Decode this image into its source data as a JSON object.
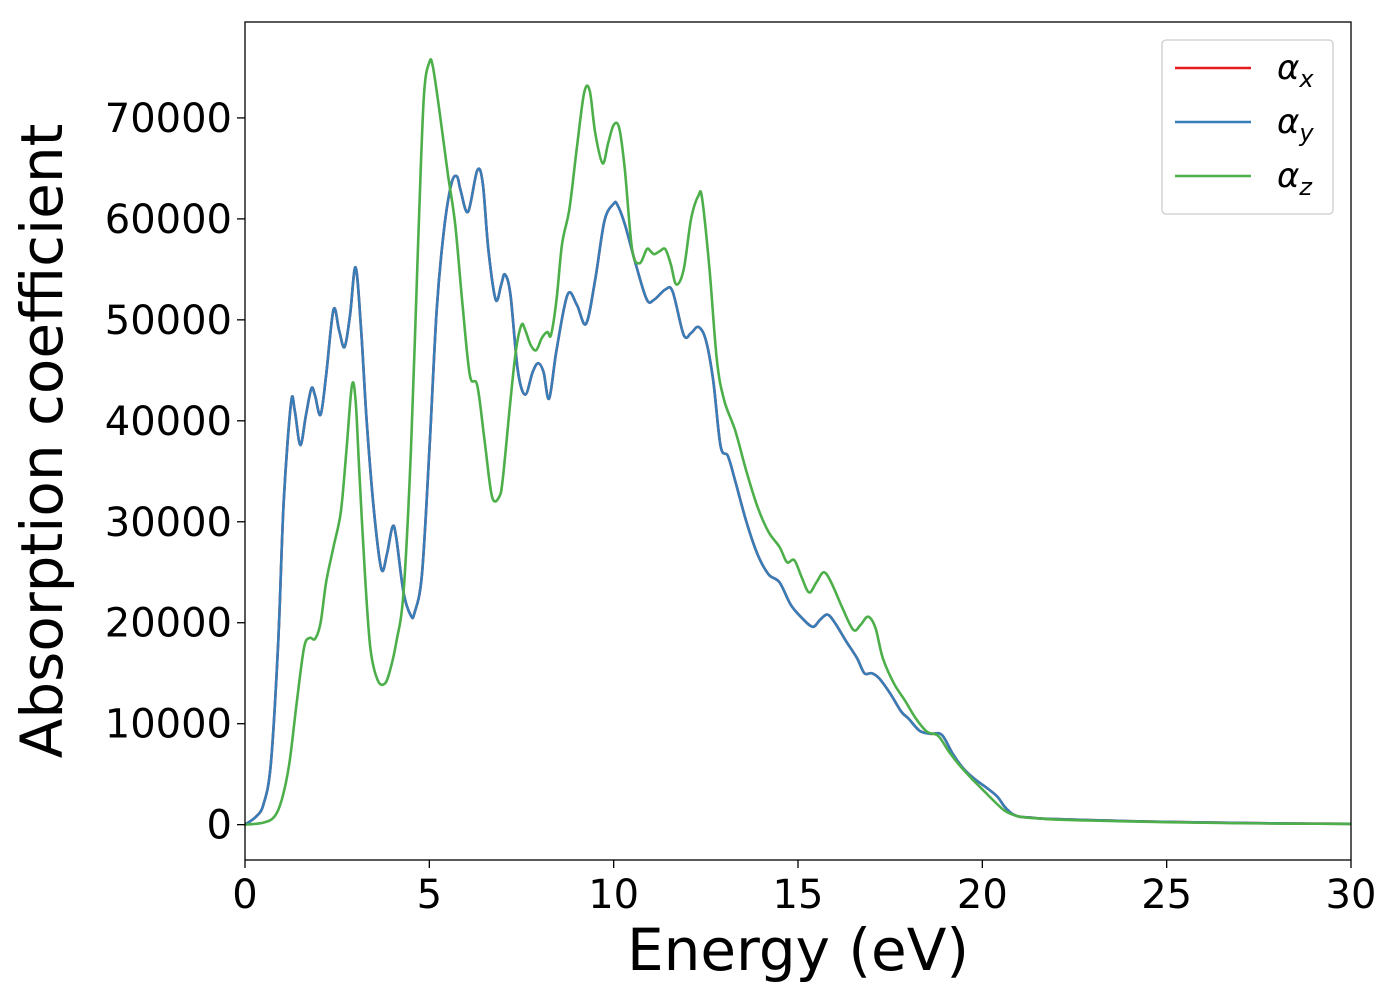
{
  "chart_data": {
    "type": "line",
    "title": "",
    "xlabel": "Energy (eV)",
    "ylabel": "Absorption coefficient",
    "xlim": [
      0,
      30
    ],
    "ylim": [
      -3500,
      79500
    ],
    "xticks": [
      0,
      5,
      10,
      15,
      20,
      25,
      30
    ],
    "yticks": [
      0,
      10000,
      20000,
      30000,
      40000,
      50000,
      60000,
      70000
    ],
    "grid": false,
    "legend_position": "top-right",
    "series": [
      {
        "name": "α",
        "name_sub": "x",
        "color": "#e41a1c",
        "x": [
          0,
          0.3,
          0.5,
          0.7,
          0.9,
          1.05,
          1.25,
          1.35,
          1.5,
          1.65,
          1.8,
          1.9,
          2.05,
          2.2,
          2.4,
          2.55,
          2.7,
          2.85,
          3.0,
          3.15,
          3.3,
          3.5,
          3.7,
          3.85,
          4.0,
          4.1,
          4.3,
          4.5,
          4.6,
          4.8,
          5.0,
          5.2,
          5.4,
          5.6,
          5.75,
          5.85,
          6.05,
          6.3,
          6.45,
          6.6,
          6.8,
          6.95,
          7.05,
          7.2,
          7.4,
          7.6,
          7.8,
          7.95,
          8.1,
          8.25,
          8.45,
          8.75,
          9.0,
          9.25,
          9.5,
          9.75,
          10.0,
          10.1,
          10.3,
          10.6,
          10.9,
          11.1,
          11.4,
          11.6,
          11.9,
          12.1,
          12.3,
          12.5,
          12.7,
          12.9,
          13.1,
          13.3,
          13.6,
          13.9,
          14.2,
          14.5,
          14.8,
          15.1,
          15.4,
          15.6,
          15.8,
          16.0,
          16.3,
          16.6,
          16.8,
          17.0,
          17.2,
          17.5,
          17.8,
          18.0,
          18.3,
          18.6,
          18.9,
          19.2,
          19.5,
          19.8,
          20.1,
          20.4,
          20.6,
          20.8,
          21.0,
          21.3,
          21.6,
          22.0,
          23.0,
          24.0,
          25.0,
          26.0,
          27.0,
          28.0,
          29.0,
          30.0
        ],
        "values": [
          0,
          800,
          2000,
          6000,
          18000,
          32000,
          41800,
          41000,
          37600,
          40500,
          43200,
          42500,
          40600,
          44500,
          51000,
          49000,
          47300,
          50500,
          55200,
          49000,
          40000,
          31000,
          25300,
          26800,
          29500,
          28500,
          23000,
          20700,
          21000,
          24800,
          37000,
          51000,
          59000,
          63500,
          64200,
          62800,
          60700,
          64800,
          63500,
          57000,
          52000,
          53500,
          54500,
          52500,
          45000,
          42600,
          44800,
          45700,
          44800,
          42200,
          47000,
          52500,
          51500,
          49600,
          54000,
          59800,
          61500,
          61400,
          59500,
          55500,
          52000,
          52000,
          53000,
          52800,
          48500,
          48700,
          49300,
          48000,
          44000,
          37500,
          36500,
          34000,
          30000,
          26800,
          24800,
          24000,
          21800,
          20500,
          19600,
          20300,
          20800,
          20000,
          18200,
          16500,
          15000,
          15000,
          14500,
          13000,
          11200,
          10500,
          9300,
          9000,
          8900,
          7000,
          5500,
          4500,
          3700,
          2800,
          1800,
          1100,
          800,
          700,
          600,
          550,
          450,
          350,
          280,
          220,
          170,
          130,
          100,
          80
        ]
      },
      {
        "name": "α",
        "name_sub": "y",
        "color": "#377eb8",
        "x": [
          0,
          0.3,
          0.5,
          0.7,
          0.9,
          1.05,
          1.25,
          1.35,
          1.5,
          1.65,
          1.8,
          1.9,
          2.05,
          2.2,
          2.4,
          2.55,
          2.7,
          2.85,
          3.0,
          3.15,
          3.3,
          3.5,
          3.7,
          3.85,
          4.0,
          4.1,
          4.3,
          4.5,
          4.6,
          4.8,
          5.0,
          5.2,
          5.4,
          5.6,
          5.75,
          5.85,
          6.05,
          6.3,
          6.45,
          6.6,
          6.8,
          6.95,
          7.05,
          7.2,
          7.4,
          7.6,
          7.8,
          7.95,
          8.1,
          8.25,
          8.45,
          8.75,
          9.0,
          9.25,
          9.5,
          9.75,
          10.0,
          10.1,
          10.3,
          10.6,
          10.9,
          11.1,
          11.4,
          11.6,
          11.9,
          12.1,
          12.3,
          12.5,
          12.7,
          12.9,
          13.1,
          13.3,
          13.6,
          13.9,
          14.2,
          14.5,
          14.8,
          15.1,
          15.4,
          15.6,
          15.8,
          16.0,
          16.3,
          16.6,
          16.8,
          17.0,
          17.2,
          17.5,
          17.8,
          18.0,
          18.3,
          18.6,
          18.9,
          19.2,
          19.5,
          19.8,
          20.1,
          20.4,
          20.6,
          20.8,
          21.0,
          21.3,
          21.6,
          22.0,
          23.0,
          24.0,
          25.0,
          26.0,
          27.0,
          28.0,
          29.0,
          30.0
        ],
        "values": [
          0,
          800,
          2000,
          6000,
          18000,
          32000,
          41800,
          41000,
          37600,
          40500,
          43200,
          42500,
          40600,
          44500,
          51000,
          49000,
          47300,
          50500,
          55200,
          49000,
          40000,
          31000,
          25300,
          26800,
          29500,
          28500,
          23000,
          20700,
          21000,
          24800,
          37000,
          51000,
          59000,
          63500,
          64200,
          62800,
          60700,
          64800,
          63500,
          57000,
          52000,
          53500,
          54500,
          52500,
          45000,
          42600,
          44800,
          45700,
          44800,
          42200,
          47000,
          52500,
          51500,
          49600,
          54000,
          59800,
          61500,
          61400,
          59500,
          55500,
          52000,
          52000,
          53000,
          52800,
          48500,
          48700,
          49300,
          48000,
          44000,
          37500,
          36500,
          34000,
          30000,
          26800,
          24800,
          24000,
          21800,
          20500,
          19600,
          20300,
          20800,
          20000,
          18200,
          16500,
          15000,
          15000,
          14500,
          13000,
          11200,
          10500,
          9300,
          9000,
          8900,
          7000,
          5500,
          4500,
          3700,
          2800,
          1800,
          1100,
          800,
          700,
          600,
          550,
          450,
          350,
          280,
          220,
          170,
          130,
          100,
          80
        ]
      },
      {
        "name": "α",
        "name_sub": "z",
        "color": "#4daf4a",
        "x": [
          0,
          0.5,
          0.8,
          1.0,
          1.2,
          1.4,
          1.6,
          1.75,
          1.9,
          2.05,
          2.2,
          2.4,
          2.6,
          2.75,
          2.9,
          3.0,
          3.1,
          3.25,
          3.4,
          3.6,
          3.8,
          3.95,
          4.1,
          4.3,
          4.5,
          4.7,
          4.85,
          5.0,
          5.1,
          5.3,
          5.5,
          5.7,
          5.9,
          6.1,
          6.3,
          6.5,
          6.7,
          6.9,
          7.0,
          7.2,
          7.35,
          7.5,
          7.6,
          7.75,
          7.9,
          8.05,
          8.2,
          8.3,
          8.45,
          8.6,
          8.8,
          9.0,
          9.2,
          9.35,
          9.5,
          9.7,
          9.85,
          10.0,
          10.15,
          10.3,
          10.5,
          10.7,
          10.9,
          11.0,
          11.1,
          11.25,
          11.4,
          11.55,
          11.7,
          11.9,
          12.1,
          12.3,
          12.4,
          12.6,
          12.8,
          13.0,
          13.3,
          13.6,
          13.9,
          14.2,
          14.5,
          14.7,
          14.9,
          15.1,
          15.3,
          15.5,
          15.7,
          15.9,
          16.2,
          16.5,
          16.7,
          16.9,
          17.1,
          17.3,
          17.6,
          17.9,
          18.2,
          18.5,
          18.8,
          19.1,
          19.4,
          19.7,
          20.0,
          20.3,
          20.6,
          20.9,
          21.2,
          21.6,
          22.0,
          23.0,
          24.0,
          25.0,
          26.0,
          27.0,
          28.0,
          29.0,
          30.0
        ],
        "values": [
          0,
          200,
          800,
          2500,
          6000,
          12000,
          17500,
          18500,
          18400,
          20000,
          24000,
          27500,
          31000,
          37000,
          43500,
          42000,
          35000,
          25000,
          17500,
          14300,
          14000,
          15500,
          18000,
          23000,
          37000,
          58000,
          72000,
          75500,
          75000,
          70000,
          64500,
          59500,
          51500,
          44500,
          43500,
          38000,
          32500,
          32500,
          34500,
          42000,
          47000,
          49500,
          49000,
          47500,
          47000,
          48200,
          48800,
          48500,
          52000,
          57500,
          61000,
          67000,
          72500,
          72700,
          68500,
          65500,
          67500,
          69300,
          69000,
          65000,
          57000,
          55600,
          57000,
          56800,
          56500,
          56800,
          57000,
          55500,
          53500,
          55000,
          60000,
          62300,
          62000,
          55000,
          46000,
          42000,
          39000,
          35000,
          31500,
          29000,
          27500,
          26000,
          26200,
          24500,
          23000,
          24000,
          25000,
          24000,
          21500,
          19300,
          19800,
          20600,
          19500,
          16500,
          14000,
          12300,
          10500,
          9200,
          8800,
          7200,
          5800,
          4600,
          3500,
          2400,
          1400,
          900,
          700,
          600,
          500,
          400,
          320,
          250,
          190,
          140,
          110,
          90,
          70
        ]
      }
    ]
  }
}
